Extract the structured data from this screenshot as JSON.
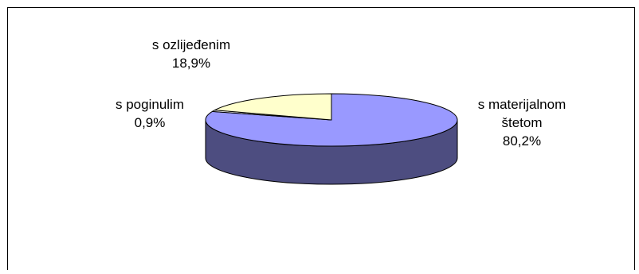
{
  "chart_data": {
    "type": "pie",
    "title": "",
    "slices": [
      {
        "label_lines": [
          "s materijalnom",
          "štetom"
        ],
        "value_text": "80,2%",
        "value": 80.2,
        "color": "#9999ff",
        "side_color": "#4d4d80"
      },
      {
        "label_lines": [
          "s poginulim"
        ],
        "value_text": "0,9%",
        "value": 0.9,
        "color": "#ffffff",
        "side_color": "#808080"
      },
      {
        "label_lines": [
          "s ozlijeđenim"
        ],
        "value_text": "18,9%",
        "value": 18.9,
        "color": "#ffffcc",
        "side_color": "#808066"
      }
    ],
    "three_d": true,
    "legend": "none"
  }
}
